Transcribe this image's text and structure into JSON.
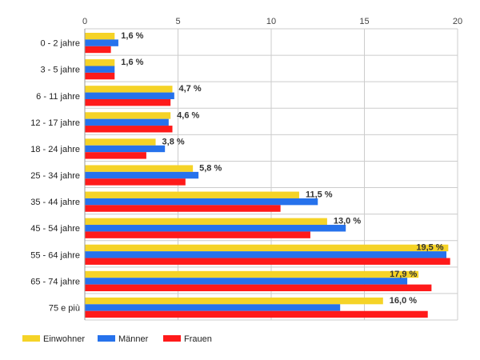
{
  "chart_data": {
    "type": "bar",
    "orientation": "horizontal",
    "title": "",
    "xlabel": "",
    "ylabel": "",
    "xlim": [
      0,
      20
    ],
    "x_ticks": [
      "0",
      "5",
      "10",
      "15",
      "20"
    ],
    "grid": true,
    "legend_position": "bottom-left",
    "categories": [
      "0 - 2 jahre",
      "3 - 5 jahre",
      "6 - 11 jahre",
      "12 - 17 jahre",
      "18 - 24 jahre",
      "25 - 34 jahre",
      "35 - 44 jahre",
      "45 - 54 jahre",
      "55 - 64 jahre",
      "65 - 74 jahre",
      "75 e più"
    ],
    "series": [
      {
        "name": "Einwohner",
        "color": "#f5d327",
        "values": [
          1.6,
          1.6,
          4.7,
          4.6,
          3.8,
          5.8,
          11.5,
          13.0,
          19.5,
          17.9,
          16.0
        ]
      },
      {
        "name": "Männer",
        "color": "#2672ec",
        "values": [
          1.8,
          1.6,
          4.8,
          4.5,
          4.3,
          6.1,
          12.5,
          14.0,
          19.4,
          17.3,
          13.7
        ]
      },
      {
        "name": "Frauen",
        "color": "#ff1a1a",
        "values": [
          1.4,
          1.6,
          4.6,
          4.7,
          3.3,
          5.4,
          10.5,
          12.1,
          19.6,
          18.6,
          18.4
        ]
      }
    ],
    "data_labels": [
      "1,6 %",
      "1,6 %",
      "4,7 %",
      "4,6 %",
      "3,8 %",
      "5,8 %",
      "11,5 %",
      "13,0 %",
      "19,5 %",
      "17,9 %",
      "16,0 %"
    ]
  }
}
